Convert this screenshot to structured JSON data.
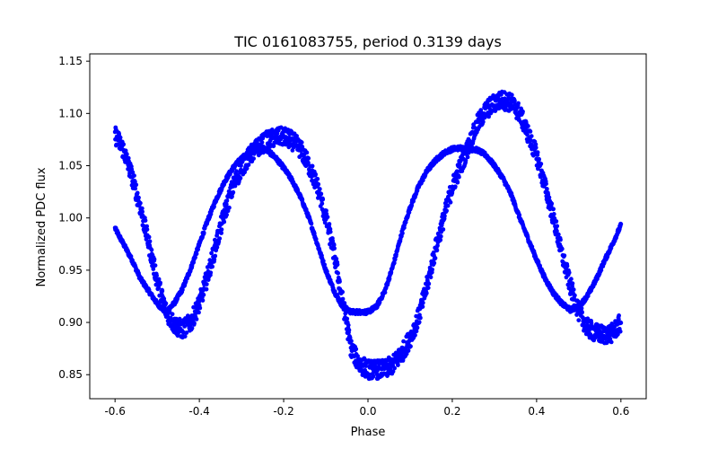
{
  "chart_data": {
    "type": "scatter",
    "title": "TIC 0161083755, period 0.3139 days",
    "xlabel": "Phase",
    "ylabel": "Normalized PDC flux",
    "xlim": [
      -0.66,
      0.66
    ],
    "ylim": [
      0.827,
      1.157
    ],
    "xticks": [
      -0.6,
      -0.4,
      -0.2,
      0.0,
      0.2,
      0.4,
      0.6
    ],
    "xtick_labels": [
      "-0.6",
      "-0.4",
      "-0.2",
      "0.0",
      "0.2",
      "0.4",
      "0.6"
    ],
    "yticks": [
      0.85,
      0.9,
      0.95,
      1.0,
      1.05,
      1.1,
      1.15
    ],
    "ytick_labels": [
      "0.85",
      "0.90",
      "0.95",
      "1.00",
      "1.05",
      "1.10",
      "1.15"
    ],
    "grid": false,
    "marker_color": "#0000ff",
    "series": [
      {
        "x": [
          -0.6,
          -0.58,
          -0.56,
          -0.54,
          -0.52,
          -0.5,
          -0.48,
          -0.46,
          -0.44,
          -0.42,
          -0.4,
          -0.38,
          -0.36,
          -0.34,
          -0.32,
          -0.3,
          -0.28,
          -0.26,
          -0.24,
          -0.22,
          -0.2,
          -0.18,
          -0.16,
          -0.14,
          -0.12,
          -0.1,
          -0.08,
          -0.06,
          -0.04,
          -0.02,
          0.0,
          0.02,
          0.04,
          0.06,
          0.08,
          0.1,
          0.12,
          0.14,
          0.16,
          0.18,
          0.2,
          0.22,
          0.24,
          0.26,
          0.28,
          0.3,
          0.32,
          0.34,
          0.36,
          0.38,
          0.4,
          0.42,
          0.44,
          0.46,
          0.48,
          0.5,
          0.52,
          0.54,
          0.56,
          0.58,
          0.6
        ],
        "y": [
          0.99,
          0.975,
          0.96,
          0.942,
          0.93,
          0.918,
          0.91,
          0.918,
          0.932,
          0.952,
          0.975,
          0.998,
          1.018,
          1.035,
          1.048,
          1.057,
          1.063,
          1.066,
          1.065,
          1.058,
          1.048,
          1.036,
          1.02,
          1.0,
          0.975,
          0.95,
          0.93,
          0.915,
          0.91,
          0.91,
          0.91,
          0.915,
          0.93,
          0.955,
          0.985,
          1.01,
          1.03,
          1.045,
          1.055,
          1.062,
          1.066,
          1.067,
          1.066,
          1.065,
          1.06,
          1.05,
          1.038,
          1.022,
          1.0,
          0.98,
          0.96,
          0.942,
          0.928,
          0.918,
          0.912,
          0.915,
          0.925,
          0.94,
          0.958,
          0.975,
          0.993
        ]
      },
      {
        "x": [
          -0.6,
          -0.58,
          -0.56,
          -0.54,
          -0.52,
          -0.5,
          -0.48,
          -0.46,
          -0.44,
          -0.42,
          -0.4,
          -0.38,
          -0.36,
          -0.34,
          -0.32,
          -0.3,
          -0.28,
          -0.26,
          -0.24,
          -0.22,
          -0.2,
          -0.18,
          -0.16,
          -0.14,
          -0.12,
          -0.1,
          -0.08,
          -0.06,
          -0.04,
          -0.02,
          0.0,
          0.02,
          0.04,
          0.06,
          0.08,
          0.1,
          0.12,
          0.14,
          0.16,
          0.18,
          0.2,
          0.22,
          0.24,
          0.26,
          0.28,
          0.3,
          0.32,
          0.34,
          0.36,
          0.38,
          0.4,
          0.42,
          0.44,
          0.46,
          0.48,
          0.5,
          0.52,
          0.54,
          0.56,
          0.58,
          0.6
        ],
        "y": [
          1.08,
          1.065,
          1.04,
          1.01,
          0.975,
          0.94,
          0.912,
          0.898,
          0.893,
          0.9,
          0.918,
          0.945,
          0.975,
          1.005,
          1.03,
          1.048,
          1.06,
          1.068,
          1.074,
          1.077,
          1.078,
          1.074,
          1.066,
          1.05,
          1.03,
          1.0,
          0.965,
          0.92,
          0.875,
          0.86,
          0.855,
          0.855,
          0.855,
          0.86,
          0.87,
          0.885,
          0.905,
          0.935,
          0.97,
          1.0,
          1.03,
          1.05,
          1.07,
          1.09,
          1.103,
          1.11,
          1.113,
          1.11,
          1.1,
          1.08,
          1.06,
          1.03,
          1.0,
          0.965,
          0.935,
          0.91,
          0.895,
          0.89,
          0.888,
          0.89,
          0.9
        ]
      }
    ]
  }
}
